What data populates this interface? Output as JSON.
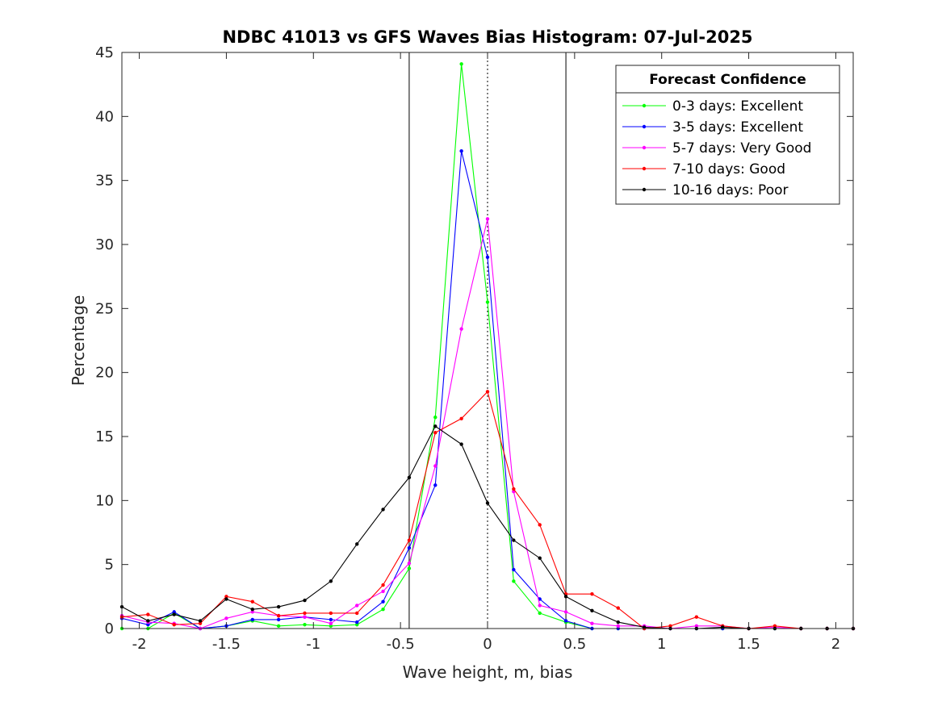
{
  "chart_data": {
    "type": "line",
    "title": "NDBC 41013 vs GFS Waves Bias Histogram: 07-Jul-2025",
    "xlabel": "Wave height, m, bias",
    "ylabel": "Percentage",
    "xlim": [
      -2.1,
      2.1
    ],
    "ylim": [
      0,
      45
    ],
    "xticks": [
      -2,
      -1.5,
      -1,
      -0.5,
      0,
      0.5,
      1,
      1.5,
      2
    ],
    "xtick_labels": [
      "-2",
      "-1.5",
      "-1",
      "-0.5",
      "0",
      "0.5",
      "1",
      "1.5",
      "2"
    ],
    "yticks": [
      0,
      5,
      10,
      15,
      20,
      25,
      30,
      35,
      40,
      45
    ],
    "ytick_labels": [
      "0",
      "5",
      "10",
      "15",
      "20",
      "25",
      "30",
      "35",
      "40",
      "45"
    ],
    "grid": false,
    "legend": {
      "title": "Forecast Confidence",
      "position": "top-right"
    },
    "vlines": [
      {
        "x": -0.45,
        "style": "solid",
        "color": "#000000"
      },
      {
        "x": 0,
        "style": "dotted",
        "color": "#000000"
      },
      {
        "x": 0.45,
        "style": "solid",
        "color": "#000000"
      }
    ],
    "x": [
      -2.1,
      -1.95,
      -1.8,
      -1.65,
      -1.5,
      -1.35,
      -1.2,
      -1.05,
      -0.9,
      -0.75,
      -0.6,
      -0.45,
      -0.3,
      -0.15,
      0,
      0.15,
      0.3,
      0.45,
      0.6,
      0.75,
      0.9,
      1.05,
      1.2,
      1.35,
      1.5,
      1.65,
      1.8,
      1.95,
      2.1
    ],
    "series": [
      {
        "name": "0-3 days: Excellent",
        "color": "#00ff00",
        "values": [
          0,
          0,
          1.2,
          0,
          0.2,
          0.6,
          0.2,
          0.3,
          0.2,
          0.3,
          1.5,
          4.7,
          16.5,
          44.1,
          25.5,
          3.7,
          1.2,
          0.5,
          0,
          0,
          0,
          0,
          0,
          0,
          0,
          0,
          0,
          0,
          0
        ]
      },
      {
        "name": "3-5 days: Excellent",
        "color": "#0000ff",
        "values": [
          0.8,
          0.3,
          1.3,
          0,
          0.2,
          0.7,
          0.7,
          0.9,
          0.7,
          0.5,
          2.1,
          6.3,
          11.2,
          37.3,
          29,
          4.6,
          2.3,
          0.6,
          0,
          0,
          0,
          0,
          0,
          0,
          0,
          0,
          0,
          0,
          0
        ]
      },
      {
        "name": "5-7 days: Very Good",
        "color": "#ff00ff",
        "values": [
          1,
          0.5,
          0.4,
          0,
          0.8,
          1.3,
          1,
          0.9,
          0.4,
          1.8,
          2.9,
          5.1,
          12.7,
          23.4,
          32,
          10.7,
          1.8,
          1.3,
          0.4,
          0.2,
          0.2,
          0,
          0.2,
          0.2,
          0,
          0.1,
          0,
          0,
          0
        ]
      },
      {
        "name": "7-10 days: Good",
        "color": "#ff0000",
        "values": [
          0.9,
          1.1,
          0.3,
          0.4,
          2.5,
          2.1,
          1,
          1.2,
          1.2,
          1.2,
          3.4,
          6.9,
          15.3,
          16.4,
          18.5,
          10.9,
          8.1,
          2.7,
          2.7,
          1.6,
          0,
          0.2,
          0.9,
          0.2,
          0,
          0.2,
          0,
          0,
          0
        ]
      },
      {
        "name": "10-16 days: Poor",
        "color": "#000000",
        "values": [
          1.7,
          0.6,
          1.1,
          0.6,
          2.3,
          1.5,
          1.7,
          2.2,
          3.7,
          6.6,
          9.3,
          11.8,
          15.8,
          14.4,
          9.8,
          6.9,
          5.5,
          2.5,
          1.4,
          0.5,
          0.1,
          0,
          0,
          0.1,
          0,
          0,
          0,
          0,
          0
        ]
      }
    ]
  }
}
